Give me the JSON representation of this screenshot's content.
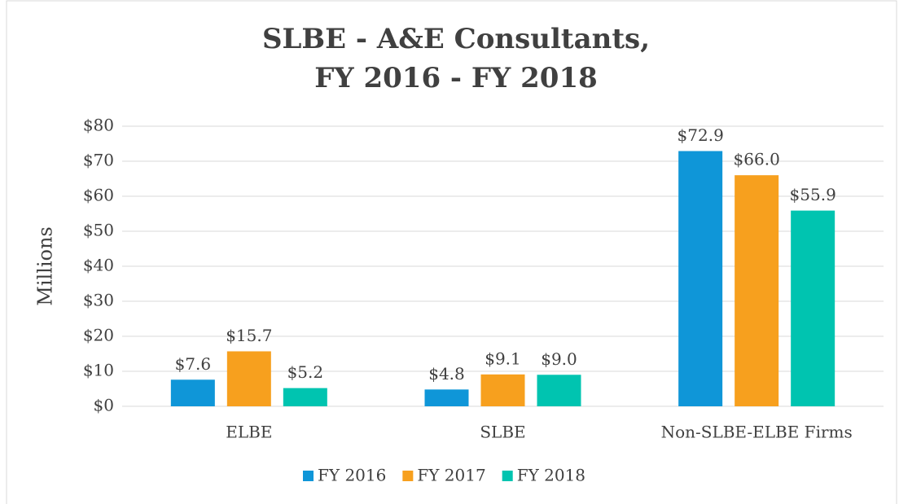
{
  "chart_data": {
    "type": "bar",
    "title": [
      "SLBE - A&E Consultants,",
      "FY 2016 - FY 2018"
    ],
    "y_label": "Millions",
    "categories": [
      "ELBE",
      "SLBE",
      "Non-SLBE-ELBE Firms"
    ],
    "series": [
      {
        "name": "FY 2016",
        "color": "#0f96d8",
        "values": [
          7.6,
          4.8,
          72.9
        ],
        "value_labels": [
          "$7.6",
          "$4.8",
          "$72.9"
        ]
      },
      {
        "name": "FY 2017",
        "color": "#f7a01e",
        "values": [
          15.7,
          9.1,
          66.0
        ],
        "value_labels": [
          "$15.7",
          "$9.1",
          "$66.0"
        ]
      },
      {
        "name": "FY 2018",
        "color": "#00c4b0",
        "values": [
          5.2,
          9.0,
          55.9
        ],
        "value_labels": [
          "$5.2",
          "$9.0",
          "$55.9"
        ]
      }
    ],
    "ylim": [
      0,
      80
    ],
    "yticks": [
      {
        "value": 0,
        "label": "$0"
      },
      {
        "value": 10,
        "label": "$10"
      },
      {
        "value": 20,
        "label": "$20"
      },
      {
        "value": 30,
        "label": "$30"
      },
      {
        "value": 40,
        "label": "$40"
      },
      {
        "value": 50,
        "label": "$50"
      },
      {
        "value": 60,
        "label": "$60"
      },
      {
        "value": 70,
        "label": "$70"
      },
      {
        "value": 80,
        "label": "$80"
      }
    ],
    "grid": true,
    "legend": "bottom"
  }
}
